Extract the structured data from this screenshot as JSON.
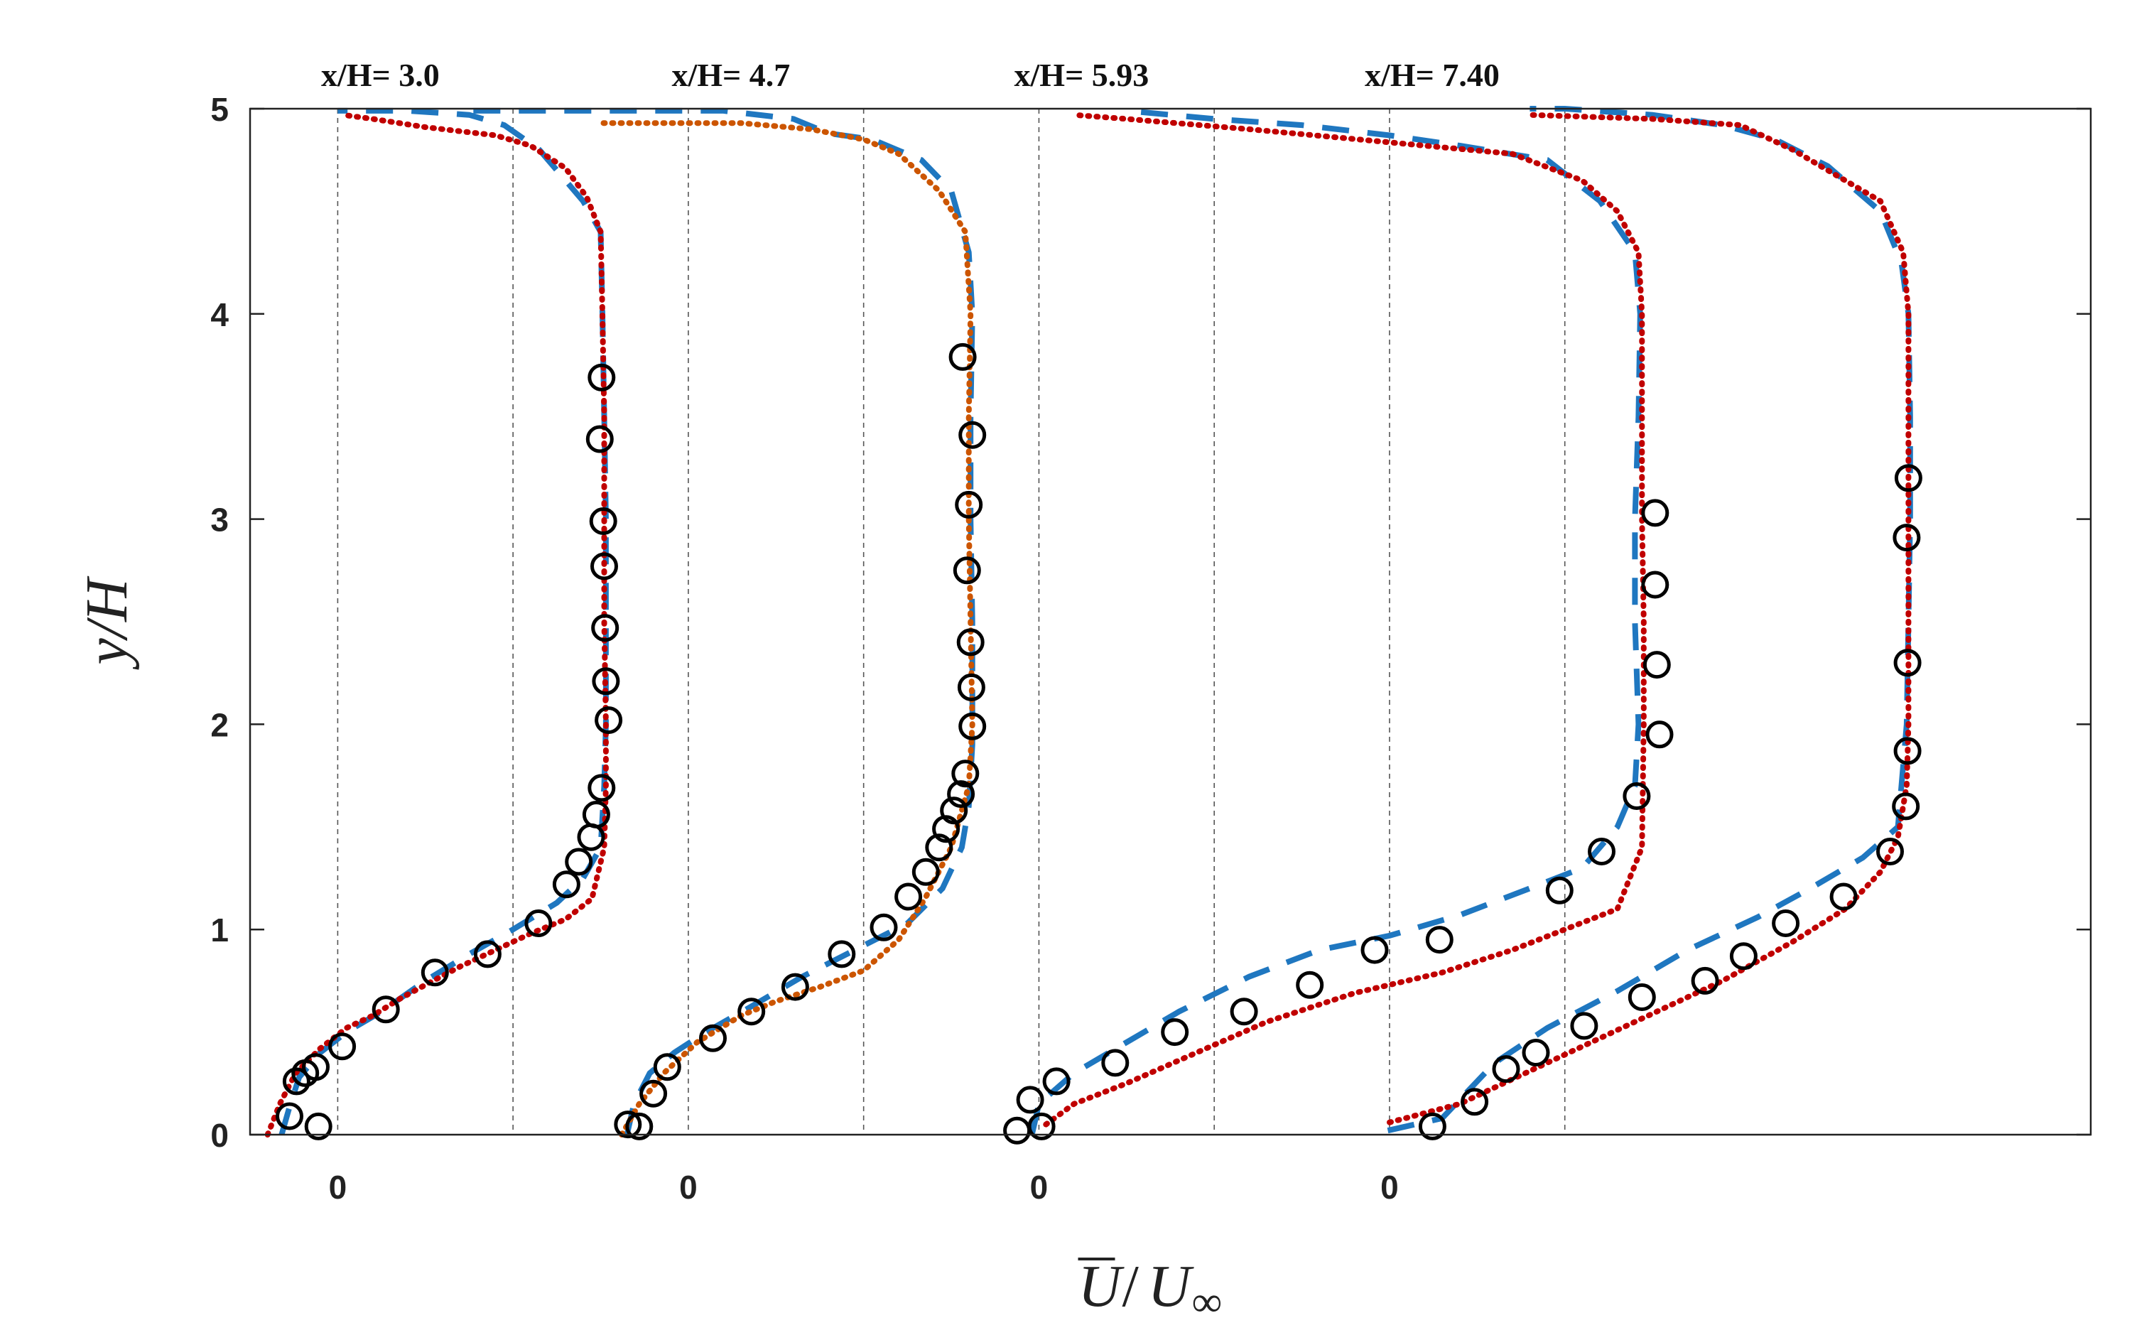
{
  "chart_data": {
    "type": "line",
    "title": "",
    "xlabel_num": "U",
    "xlabel_den": "U",
    "xlabel_sub": "∞",
    "ylabel": "y/H",
    "ylim": [
      0,
      5
    ],
    "y_ticks": [
      "0",
      "1",
      "2",
      "3",
      "4",
      "5"
    ],
    "profile_scale": 2.0,
    "stations": [
      {
        "label": "x/H= 3.0",
        "zero_label": "0",
        "x0": 0.0,
        "experiment": [
          [
            -0.11,
            0.04
          ],
          [
            -0.275,
            0.09
          ],
          [
            -0.235,
            0.26
          ],
          [
            -0.185,
            0.3
          ],
          [
            -0.125,
            0.33
          ],
          [
            0.025,
            0.43
          ],
          [
            0.275,
            0.61
          ],
          [
            0.555,
            0.79
          ],
          [
            0.855,
            0.88
          ],
          [
            1.145,
            1.03
          ],
          [
            1.305,
            1.22
          ],
          [
            1.375,
            1.33
          ],
          [
            1.445,
            1.45
          ],
          [
            1.475,
            1.56
          ],
          [
            1.505,
            1.69
          ],
          [
            1.545,
            2.02
          ],
          [
            1.53,
            2.21
          ],
          [
            1.525,
            2.47
          ],
          [
            1.52,
            2.77
          ],
          [
            1.515,
            2.99
          ],
          [
            1.495,
            3.39
          ],
          [
            1.505,
            3.69
          ]
        ],
        "model_dashed": [
          [
            -0.32,
            0.0
          ],
          [
            -0.28,
            0.12
          ],
          [
            -0.22,
            0.28
          ],
          [
            -0.1,
            0.4
          ],
          [
            0.05,
            0.5
          ],
          [
            0.25,
            0.6
          ],
          [
            0.5,
            0.75
          ],
          [
            0.75,
            0.88
          ],
          [
            1.0,
            1.0
          ],
          [
            1.25,
            1.13
          ],
          [
            1.4,
            1.25
          ],
          [
            1.5,
            1.4
          ],
          [
            1.52,
            1.7
          ],
          [
            1.53,
            2.0
          ],
          [
            1.53,
            2.5
          ],
          [
            1.53,
            3.0
          ],
          [
            1.52,
            3.5
          ],
          [
            1.51,
            4.0
          ],
          [
            1.5,
            4.4
          ],
          [
            1.4,
            4.55
          ],
          [
            1.25,
            4.7
          ],
          [
            1.15,
            4.8
          ],
          [
            1.05,
            4.86
          ],
          [
            0.95,
            4.92
          ],
          [
            0.75,
            4.97
          ],
          [
            0.4,
            4.99
          ],
          [
            0.0,
            4.99
          ]
        ],
        "model_dotted": [
          [
            -0.4,
            0.0
          ],
          [
            -0.33,
            0.15
          ],
          [
            -0.24,
            0.3
          ],
          [
            -0.1,
            0.42
          ],
          [
            0.05,
            0.52
          ],
          [
            0.2,
            0.58
          ],
          [
            0.35,
            0.66
          ],
          [
            0.5,
            0.73
          ],
          [
            0.7,
            0.82
          ],
          [
            0.9,
            0.9
          ],
          [
            1.1,
            0.98
          ],
          [
            1.3,
            1.05
          ],
          [
            1.45,
            1.15
          ],
          [
            1.52,
            1.4
          ],
          [
            1.53,
            1.7
          ],
          [
            1.53,
            2.0
          ],
          [
            1.52,
            2.5
          ],
          [
            1.52,
            3.0
          ],
          [
            1.52,
            3.5
          ],
          [
            1.51,
            4.0
          ],
          [
            1.5,
            4.4
          ],
          [
            1.42,
            4.57
          ],
          [
            1.3,
            4.71
          ],
          [
            1.1,
            4.82
          ],
          [
            0.9,
            4.87
          ],
          [
            0.5,
            4.91
          ],
          [
            0.2,
            4.95
          ],
          [
            0.03,
            4.97
          ]
        ]
      },
      {
        "label": "x/H= 4.7",
        "zero_label": "0",
        "x0": 2.0,
        "experiment": [
          [
            -0.28,
            0.04
          ],
          [
            -0.345,
            0.05
          ],
          [
            -0.2,
            0.2
          ],
          [
            -0.12,
            0.33
          ],
          [
            0.14,
            0.47
          ],
          [
            0.36,
            0.6
          ],
          [
            0.61,
            0.72
          ],
          [
            0.875,
            0.88
          ],
          [
            1.115,
            1.01
          ],
          [
            1.255,
            1.16
          ],
          [
            1.355,
            1.28
          ],
          [
            1.43,
            1.4
          ],
          [
            1.47,
            1.49
          ],
          [
            1.515,
            1.58
          ],
          [
            1.555,
            1.66
          ],
          [
            1.58,
            1.76
          ],
          [
            1.62,
            1.99
          ],
          [
            1.615,
            2.18
          ],
          [
            1.61,
            2.4
          ],
          [
            1.59,
            2.75
          ],
          [
            1.6,
            3.07
          ],
          [
            1.62,
            3.41
          ],
          [
            1.565,
            3.79
          ]
        ],
        "model_dashed": [
          [
            -0.35,
            0.0
          ],
          [
            -0.31,
            0.15
          ],
          [
            -0.22,
            0.3
          ],
          [
            -0.08,
            0.4
          ],
          [
            0.1,
            0.5
          ],
          [
            0.35,
            0.62
          ],
          [
            0.65,
            0.77
          ],
          [
            0.95,
            0.9
          ],
          [
            1.25,
            1.03
          ],
          [
            1.45,
            1.2
          ],
          [
            1.56,
            1.4
          ],
          [
            1.6,
            1.6
          ],
          [
            1.62,
            1.9
          ],
          [
            1.62,
            2.5
          ],
          [
            1.61,
            3.0
          ],
          [
            1.61,
            3.5
          ],
          [
            1.62,
            4.0
          ],
          [
            1.6,
            4.3
          ],
          [
            1.5,
            4.6
          ],
          [
            1.33,
            4.75
          ],
          [
            1.05,
            4.85
          ],
          [
            0.8,
            4.88
          ],
          [
            0.6,
            4.95
          ],
          [
            0.2,
            4.99
          ],
          [
            -1.3,
            4.99
          ]
        ],
        "model_dotted": [
          [
            -0.38,
            0.0
          ],
          [
            -0.28,
            0.15
          ],
          [
            -0.14,
            0.3
          ],
          [
            0.05,
            0.45
          ],
          [
            0.3,
            0.58
          ],
          [
            0.5,
            0.65
          ],
          [
            0.75,
            0.72
          ],
          [
            1.0,
            0.8
          ],
          [
            1.2,
            0.95
          ],
          [
            1.35,
            1.15
          ],
          [
            1.5,
            1.4
          ],
          [
            1.6,
            1.7
          ],
          [
            1.62,
            2.0
          ],
          [
            1.61,
            2.5
          ],
          [
            1.6,
            3.0
          ],
          [
            1.6,
            3.5
          ],
          [
            1.61,
            4.0
          ],
          [
            1.58,
            4.4
          ],
          [
            1.43,
            4.6
          ],
          [
            1.2,
            4.78
          ],
          [
            1.0,
            4.85
          ],
          [
            0.7,
            4.9
          ],
          [
            0.3,
            4.93
          ],
          [
            -0.5,
            4.93
          ]
        ]
      },
      {
        "label": "x/H= 5.93",
        "zero_label": "0",
        "x0": 4.0,
        "experiment": [
          [
            -0.125,
            0.02
          ],
          [
            0.015,
            0.04
          ],
          [
            -0.05,
            0.17
          ],
          [
            0.1,
            0.26
          ],
          [
            0.435,
            0.35
          ],
          [
            0.775,
            0.5
          ],
          [
            1.17,
            0.6
          ],
          [
            1.545,
            0.73
          ],
          [
            1.915,
            0.9
          ],
          [
            2.285,
            0.95
          ],
          [
            2.97,
            1.19
          ],
          [
            3.21,
            1.38
          ],
          [
            3.41,
            1.65
          ],
          [
            3.54,
            1.95
          ],
          [
            3.525,
            2.29
          ],
          [
            3.515,
            2.68
          ],
          [
            3.515,
            3.03
          ]
        ],
        "model_dashed": [
          [
            -0.04,
            0.0
          ],
          [
            0.0,
            0.15
          ],
          [
            0.2,
            0.3
          ],
          [
            0.5,
            0.45
          ],
          [
            0.8,
            0.6
          ],
          [
            1.2,
            0.77
          ],
          [
            1.6,
            0.9
          ],
          [
            2.0,
            0.97
          ],
          [
            2.4,
            1.07
          ],
          [
            2.8,
            1.2
          ],
          [
            3.1,
            1.3
          ],
          [
            3.3,
            1.5
          ],
          [
            3.4,
            1.7
          ],
          [
            3.42,
            2.0
          ],
          [
            3.4,
            2.5
          ],
          [
            3.4,
            3.0
          ],
          [
            3.42,
            3.5
          ],
          [
            3.43,
            4.0
          ],
          [
            3.4,
            4.3
          ],
          [
            3.2,
            4.55
          ],
          [
            2.9,
            4.75
          ],
          [
            2.4,
            4.82
          ],
          [
            2.0,
            4.87
          ],
          [
            1.5,
            4.92
          ],
          [
            1.0,
            4.95
          ],
          [
            0.5,
            4.99
          ]
        ],
        "model_dotted": [
          [
            0.04,
            0.05
          ],
          [
            0.2,
            0.15
          ],
          [
            0.5,
            0.25
          ],
          [
            0.9,
            0.4
          ],
          [
            1.3,
            0.55
          ],
          [
            1.8,
            0.69
          ],
          [
            2.3,
            0.79
          ],
          [
            2.7,
            0.9
          ],
          [
            3.0,
            1.0
          ],
          [
            3.3,
            1.1
          ],
          [
            3.44,
            1.4
          ],
          [
            3.45,
            2.0
          ],
          [
            3.45,
            2.5
          ],
          [
            3.44,
            3.0
          ],
          [
            3.44,
            3.5
          ],
          [
            3.44,
            4.0
          ],
          [
            3.42,
            4.3
          ],
          [
            3.3,
            4.5
          ],
          [
            3.1,
            4.65
          ],
          [
            2.7,
            4.78
          ],
          [
            2.2,
            4.82
          ],
          [
            1.7,
            4.86
          ],
          [
            1.2,
            4.9
          ],
          [
            0.5,
            4.95
          ],
          [
            0.2,
            4.97
          ]
        ]
      },
      {
        "label": "x/H= 7.40",
        "zero_label": "0",
        "x0": 6.0,
        "experiment": [
          [
            0.245,
            0.04
          ],
          [
            0.485,
            0.16
          ],
          [
            0.665,
            0.32
          ],
          [
            0.835,
            0.4
          ],
          [
            1.11,
            0.53
          ],
          [
            1.44,
            0.67
          ],
          [
            1.8,
            0.75
          ],
          [
            2.02,
            0.87
          ],
          [
            2.26,
            1.03
          ],
          [
            2.59,
            1.16
          ],
          [
            2.855,
            1.38
          ],
          [
            2.945,
            1.6
          ],
          [
            2.955,
            1.87
          ],
          [
            2.955,
            2.3
          ],
          [
            2.95,
            2.91
          ],
          [
            2.96,
            3.2
          ]
        ],
        "model_dashed": [
          [
            -0.01,
            0.02
          ],
          [
            0.3,
            0.08
          ],
          [
            0.6,
            0.35
          ],
          [
            0.9,
            0.52
          ],
          [
            1.3,
            0.7
          ],
          [
            1.7,
            0.9
          ],
          [
            2.1,
            1.06
          ],
          [
            2.4,
            1.2
          ],
          [
            2.7,
            1.35
          ],
          [
            2.9,
            1.5
          ],
          [
            2.95,
            2.0
          ],
          [
            2.96,
            2.5
          ],
          [
            2.97,
            3.0
          ],
          [
            2.97,
            3.5
          ],
          [
            2.96,
            4.0
          ],
          [
            2.92,
            4.25
          ],
          [
            2.8,
            4.5
          ],
          [
            2.5,
            4.72
          ],
          [
            2.2,
            4.85
          ],
          [
            1.9,
            4.92
          ],
          [
            1.5,
            4.97
          ],
          [
            1.0,
            5.0
          ],
          [
            0.8,
            5.0
          ]
        ],
        "model_dotted": [
          [
            0.0,
            0.06
          ],
          [
            0.4,
            0.15
          ],
          [
            0.9,
            0.35
          ],
          [
            1.4,
            0.55
          ],
          [
            1.9,
            0.75
          ],
          [
            2.3,
            0.94
          ],
          [
            2.6,
            1.1
          ],
          [
            2.8,
            1.28
          ],
          [
            2.9,
            1.45
          ],
          [
            2.95,
            1.7
          ],
          [
            2.96,
            2.0
          ],
          [
            2.96,
            2.5
          ],
          [
            2.96,
            3.0
          ],
          [
            2.96,
            3.5
          ],
          [
            2.96,
            4.0
          ],
          [
            2.93,
            4.3
          ],
          [
            2.8,
            4.55
          ],
          [
            2.6,
            4.65
          ],
          [
            2.3,
            4.8
          ],
          [
            2.0,
            4.92
          ],
          [
            1.5,
            4.95
          ],
          [
            0.8,
            4.97
          ]
        ]
      }
    ],
    "colors": {
      "dashed": "#1f77c0",
      "dotted": "#c00000",
      "dotted_alt": "#cc5500",
      "markers": "#000000",
      "guides": "#555555",
      "axis": "#222222"
    }
  }
}
